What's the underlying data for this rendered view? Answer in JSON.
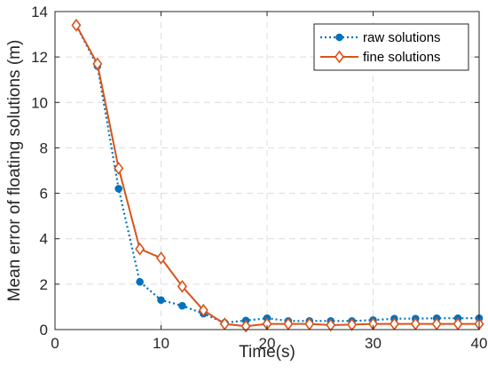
{
  "chart_data": {
    "type": "line",
    "xlabel": "Time(s)",
    "ylabel": "Mean error of floating solutions (m)",
    "xlim": [
      0,
      40
    ],
    "ylim": [
      0,
      14
    ],
    "xticks": [
      0,
      10,
      20,
      30,
      40
    ],
    "yticks": [
      0,
      2,
      4,
      6,
      8,
      10,
      12,
      14
    ],
    "grid": true,
    "legend_position": "top-right",
    "x": [
      2,
      4,
      6,
      8,
      10,
      12,
      14,
      16,
      18,
      20,
      22,
      24,
      26,
      28,
      30,
      32,
      34,
      36,
      38,
      40
    ],
    "series": [
      {
        "name": "raw solutions",
        "values": [
          13.4,
          11.6,
          6.2,
          2.1,
          1.3,
          1.05,
          0.7,
          0.3,
          0.4,
          0.5,
          0.38,
          0.38,
          0.38,
          0.38,
          0.42,
          0.48,
          0.48,
          0.5,
          0.5,
          0.5
        ],
        "color": "#0072BD",
        "line_style": "dotted",
        "marker": "circle"
      },
      {
        "name": "fine solutions",
        "values": [
          13.4,
          11.7,
          7.1,
          3.55,
          3.15,
          1.9,
          0.85,
          0.25,
          0.15,
          0.25,
          0.25,
          0.25,
          0.2,
          0.22,
          0.25,
          0.25,
          0.25,
          0.25,
          0.25,
          0.25
        ],
        "color": "#D95319",
        "line_style": "solid",
        "marker": "diamond"
      }
    ]
  }
}
